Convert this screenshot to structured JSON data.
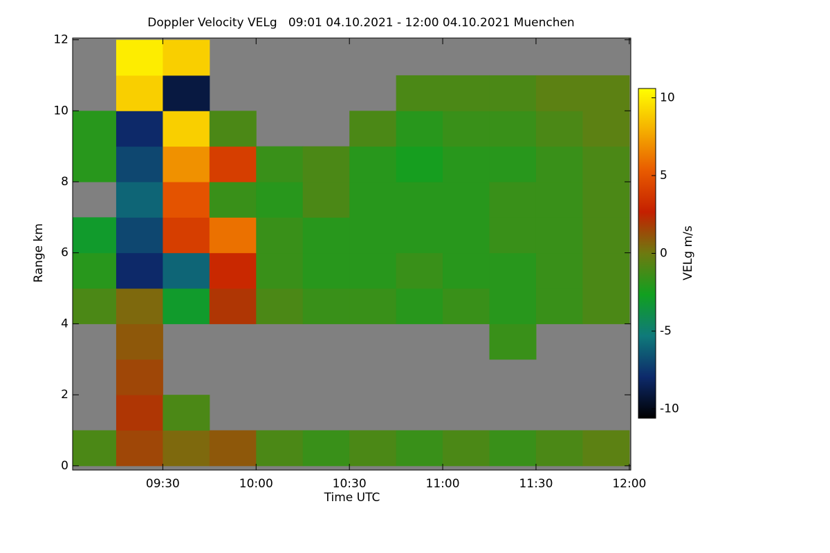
{
  "chart_data": {
    "type": "heatmap",
    "title": "Doppler Velocity VELg   09:01 04.10.2021 - 12:00 04.10.2021 Muenchen",
    "x_label": "Time UTC",
    "y_label": "Range km",
    "colorbar_label": "VELg m/s",
    "xbins": [
      9.0167,
      9.25,
      9.5,
      9.75,
      10,
      10.25,
      10.5,
      10.75,
      11,
      11.25,
      11.5,
      11.75,
      12
    ],
    "ybins": [
      0,
      1,
      2,
      3,
      4,
      5,
      6,
      7,
      8,
      9,
      10,
      11,
      12
    ],
    "z": [
      [
        -1,
        1.5,
        0.5,
        1,
        -1,
        -1.5,
        -1,
        -1.5,
        -1,
        -1.5,
        -1,
        -0.5
      ],
      [
        null,
        2,
        -1,
        null,
        null,
        null,
        null,
        null,
        null,
        null,
        null,
        null
      ],
      [
        null,
        1.5,
        null,
        null,
        null,
        null,
        null,
        null,
        null,
        null,
        null,
        null
      ],
      [
        null,
        1,
        null,
        null,
        null,
        null,
        null,
        null,
        null,
        -1.5,
        null,
        null
      ],
      [
        -1,
        0.5,
        -3,
        2,
        -1,
        -1.5,
        -1.5,
        -2,
        -1.5,
        -2,
        -1.5,
        -1
      ],
      [
        -2,
        -8,
        -6,
        3,
        -1.5,
        -2,
        -2,
        -1.5,
        -2,
        -2,
        -1.5,
        -1
      ],
      [
        -3,
        -7,
        4,
        6,
        -1.5,
        -2,
        -2,
        -2,
        -2,
        -1.5,
        -1.5,
        -1
      ],
      [
        null,
        -6,
        5,
        -1.5,
        -2,
        -1,
        -2,
        -2,
        -2,
        -1.5,
        -1.5,
        -1
      ],
      [
        -2,
        -7,
        7,
        4,
        -1.5,
        -1,
        -2,
        -2.5,
        -2,
        -2,
        -1.5,
        -1
      ],
      [
        -2,
        -8,
        9,
        -1,
        null,
        null,
        -1,
        -2,
        -1.5,
        -1.5,
        -1,
        -0.5
      ],
      [
        null,
        9,
        -9,
        null,
        null,
        null,
        null,
        -1,
        -1,
        -1,
        -0.5,
        -0.5
      ],
      [
        null,
        10,
        9,
        null,
        null,
        null,
        null,
        null,
        null,
        null,
        null,
        null
      ]
    ],
    "xlim": [
      9.0167,
      12.008
    ],
    "ylim": [
      -0.12,
      12.05
    ],
    "xticks": [
      {
        "value": 9.5,
        "label": "09:30"
      },
      {
        "value": 10,
        "label": "10:00"
      },
      {
        "value": 10.5,
        "label": "10:30"
      },
      {
        "value": 11,
        "label": "11:00"
      },
      {
        "value": 11.5,
        "label": "11:30"
      },
      {
        "value": 12,
        "label": "12:00"
      }
    ],
    "yticks": [
      0,
      2,
      4,
      6,
      8,
      10,
      12
    ],
    "zlim": [
      -10.6,
      10.6
    ],
    "zticks": [
      -10,
      -5,
      0,
      5,
      10
    ],
    "colorscale": [
      "#000000",
      "#0d2a6b",
      "#0f7a7a",
      "#11a020",
      "#6e7a10",
      "#c42000",
      "#e85a00",
      "#f5b000",
      "#ffff00"
    ],
    "missing_color": "#808080"
  }
}
